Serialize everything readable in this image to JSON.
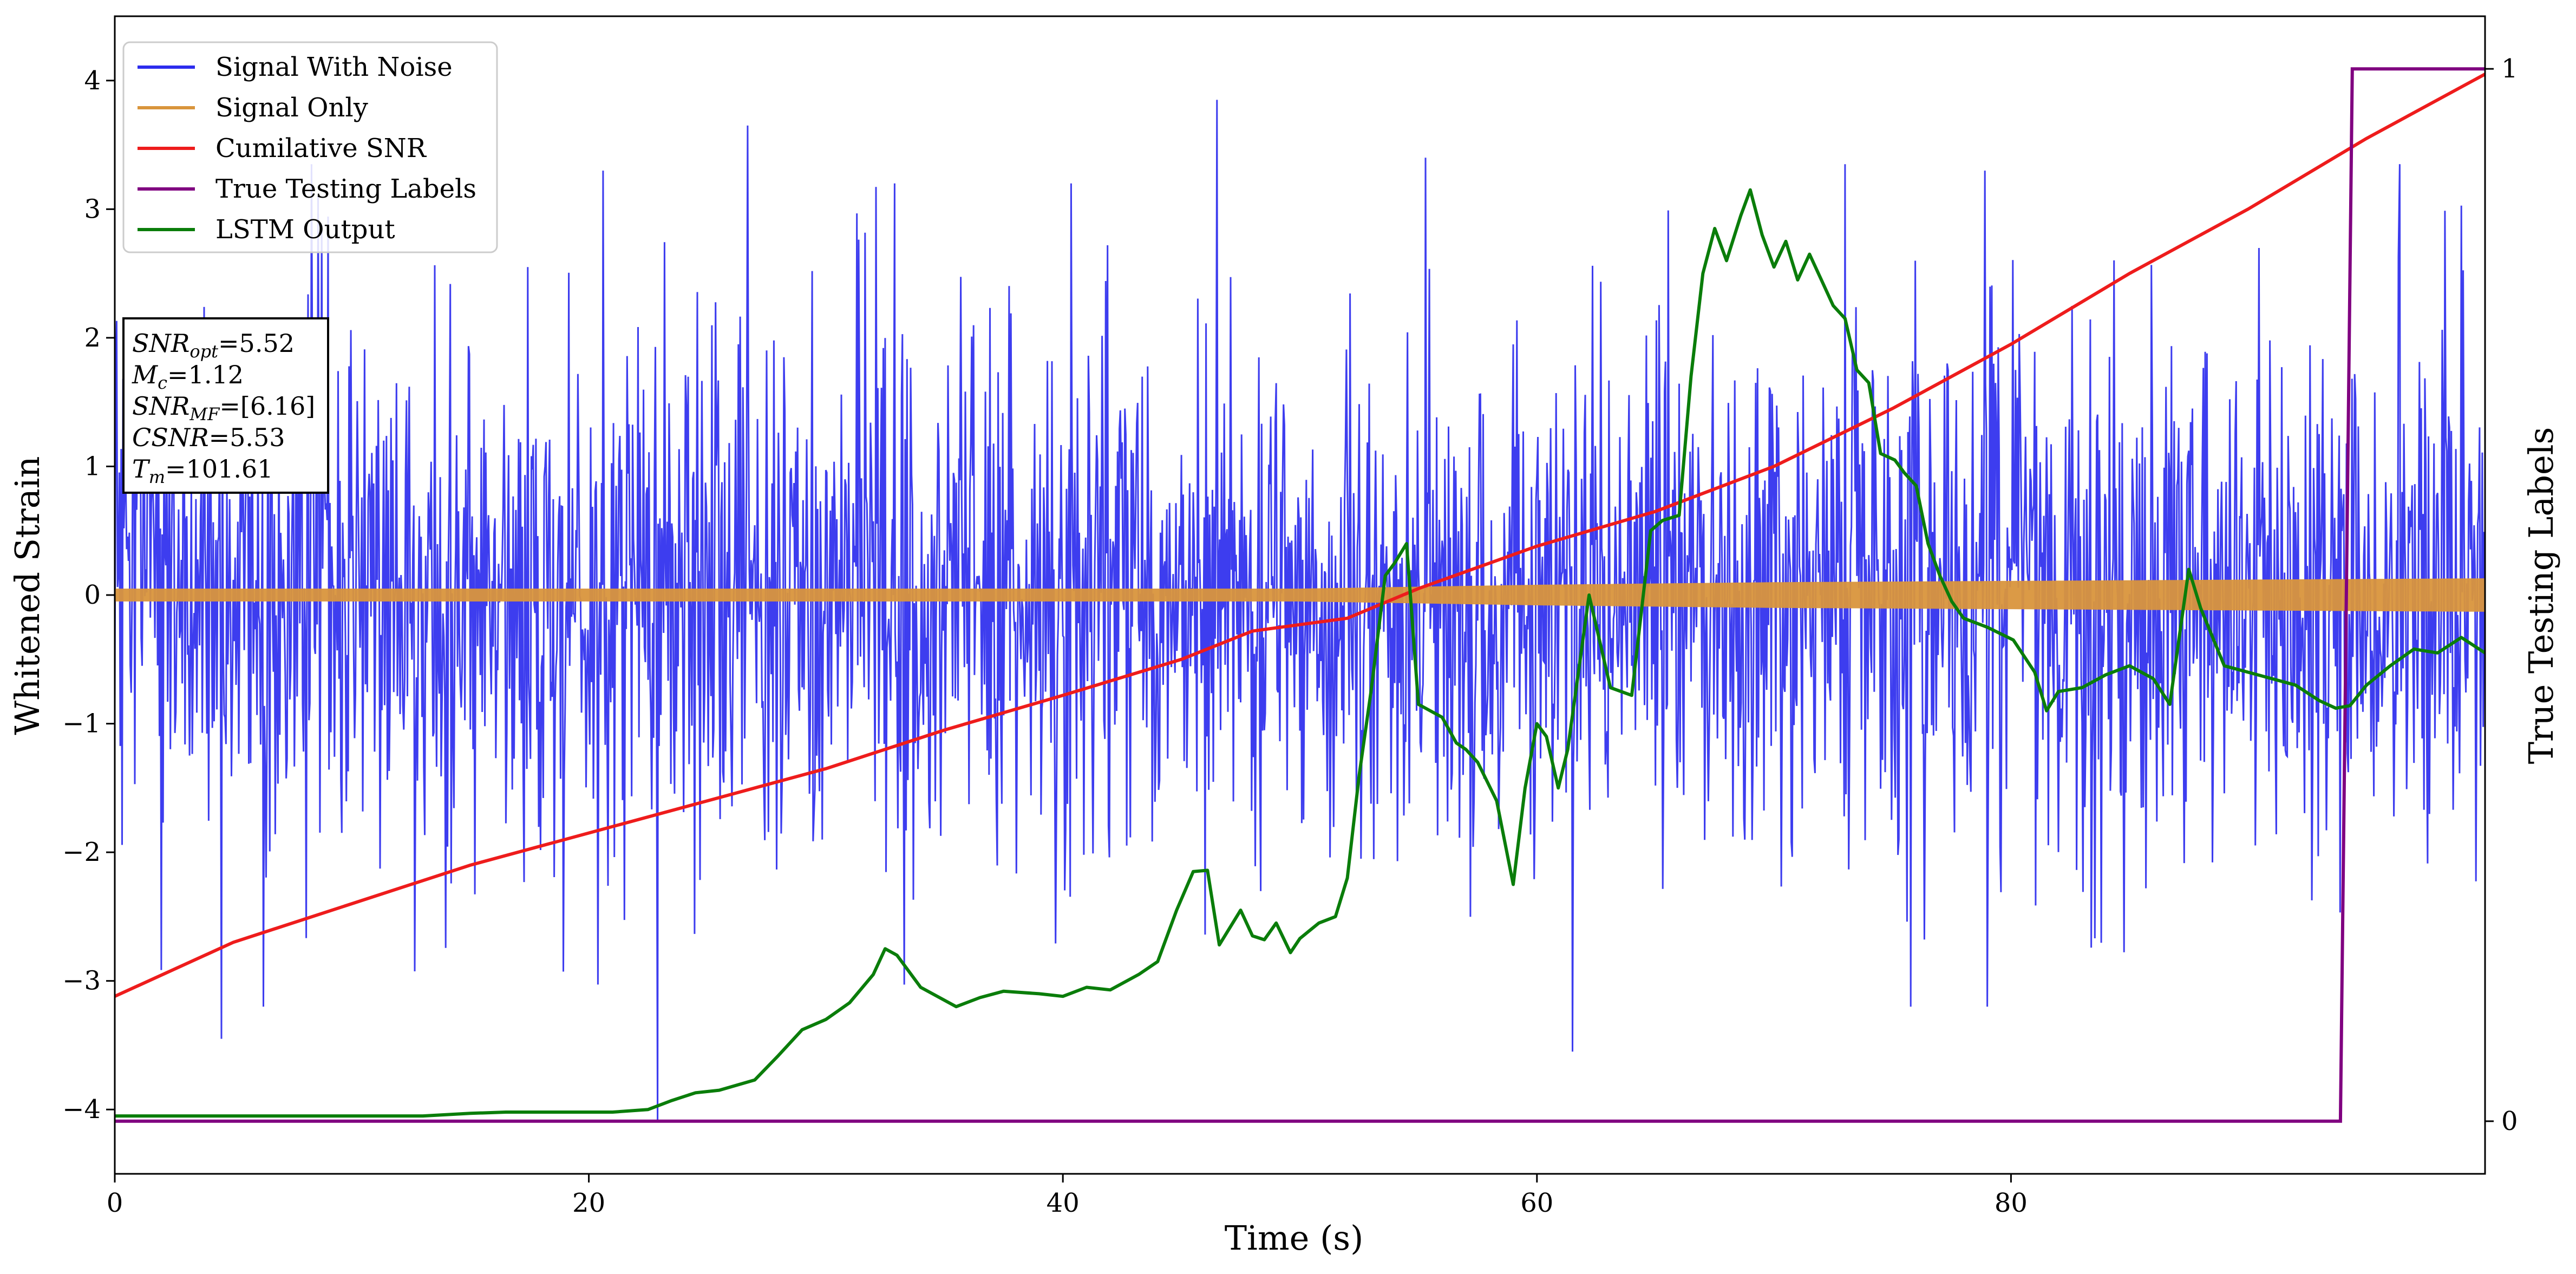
{
  "chart_data": {
    "type": "line",
    "xlabel": "Time (s)",
    "ylabel_left": "Whitened Strain",
    "ylabel_right": "True Testing Labels",
    "xlim": [
      0,
      100
    ],
    "ylim_left": [
      -4.5,
      4.5
    ],
    "ylim_right": [
      -0.05,
      1.05
    ],
    "x_ticks": [
      0,
      20,
      40,
      60,
      80
    ],
    "y_ticks_left": [
      -4,
      -3,
      -2,
      -1,
      0,
      1,
      2,
      3,
      4
    ],
    "y_ticks_right": [
      0,
      1
    ],
    "grid": false,
    "legend_position": "top-left",
    "colors": {
      "signal_with_noise": "#2d2dee",
      "signal_only": "#d9953c",
      "cumulative_snr": "#ee1c1c",
      "true_testing_labels": "#800080",
      "lstm_output": "#0a7d0a"
    },
    "legend": [
      {
        "key": "signal_with_noise",
        "label": "Signal With Noise"
      },
      {
        "key": "signal_only",
        "label": "Signal Only"
      },
      {
        "key": "cumulative_snr",
        "label": "Cumilative SNR"
      },
      {
        "key": "true_testing_labels",
        "label": "True Testing Labels"
      },
      {
        "key": "lstm_output",
        "label": "LSTM Output"
      }
    ],
    "signal_with_noise": {
      "note": "white noise, approx. std 1, range about -4.1 to 3.9",
      "notable_spikes": [
        [
          4.5,
          -3.45
        ],
        [
          8.3,
          3.35
        ],
        [
          20.6,
          3.3
        ],
        [
          22.9,
          -4.1
        ],
        [
          26.7,
          3.65
        ],
        [
          32.9,
          3.2
        ],
        [
          46.5,
          3.85
        ],
        [
          55.3,
          3.4
        ],
        [
          61.5,
          -3.55
        ],
        [
          73.0,
          3.35
        ],
        [
          78.9,
          3.3
        ],
        [
          96.4,
          3.35
        ]
      ]
    },
    "signal_only": {
      "note": "small chirp, amplitude envelope",
      "envelope": [
        [
          0,
          0.05
        ],
        [
          20,
          0.05
        ],
        [
          40,
          0.05
        ],
        [
          50,
          0.05
        ],
        [
          60,
          0.08
        ],
        [
          70,
          0.1
        ],
        [
          80,
          0.11
        ],
        [
          90,
          0.12
        ],
        [
          100,
          0.13
        ]
      ]
    },
    "cumulative_snr": {
      "x": [
        0,
        5,
        10,
        15,
        20,
        25,
        30,
        35,
        40,
        45,
        48,
        52,
        55,
        60,
        65,
        70,
        75,
        80,
        85,
        90,
        95,
        100
      ],
      "y": [
        -3.12,
        -2.7,
        -2.4,
        -2.1,
        -1.85,
        -1.6,
        -1.35,
        -1.05,
        -0.78,
        -0.5,
        -0.28,
        -0.18,
        0.05,
        0.38,
        0.65,
        1.0,
        1.45,
        1.95,
        2.5,
        3.0,
        3.55,
        4.05
      ]
    },
    "true_testing_labels": {
      "x": [
        0,
        93.9,
        94.4,
        100
      ],
      "y": [
        0,
        0,
        1,
        1
      ]
    },
    "lstm_output": {
      "x": [
        0,
        10,
        13,
        15,
        16.5,
        19,
        21,
        22.5,
        23.5,
        24.5,
        25.5,
        27,
        28,
        29,
        30,
        31,
        32,
        32.5,
        33,
        34,
        35.5,
        36.5,
        37.5,
        39,
        40,
        41,
        42,
        43.2,
        44,
        44.8,
        45.5,
        46.1,
        46.6,
        47.5,
        48,
        48.5,
        49,
        49.6,
        50,
        50.8,
        51.5,
        52,
        52.5,
        53,
        53.6,
        54,
        54.5,
        55,
        56,
        56.6,
        57,
        57.5,
        58.3,
        59,
        59.5,
        60,
        60.4,
        60.9,
        61.3,
        62.2,
        63.1,
        64,
        64.8,
        65.3,
        66,
        66.5,
        67,
        67.5,
        68,
        68.6,
        69,
        69.5,
        70,
        70.5,
        71,
        71.5,
        72,
        72.5,
        73,
        73.5,
        74,
        74.5,
        75.1,
        75.5,
        76,
        76.5,
        77,
        77.5,
        78,
        79,
        80.1,
        81,
        81.5,
        82,
        83,
        84,
        85,
        86,
        86.7,
        87.5,
        88,
        89,
        90,
        91,
        92,
        93,
        93.7,
        94.3,
        95,
        96,
        97,
        98,
        99,
        100
      ],
      "y": [
        -4.05,
        -4.05,
        -4.05,
        -4.03,
        -4.02,
        -4.02,
        -4.02,
        -4.0,
        -3.93,
        -3.87,
        -3.85,
        -3.77,
        -3.58,
        -3.38,
        -3.3,
        -3.17,
        -2.95,
        -2.75,
        -2.8,
        -3.05,
        -3.2,
        -3.13,
        -3.08,
        -3.1,
        -3.12,
        -3.05,
        -3.07,
        -2.95,
        -2.85,
        -2.45,
        -2.15,
        -2.14,
        -2.72,
        -2.45,
        -2.65,
        -2.68,
        -2.55,
        -2.78,
        -2.67,
        -2.55,
        -2.5,
        -2.2,
        -1.4,
        -0.75,
        0.15,
        0.25,
        0.4,
        -0.85,
        -0.95,
        -1.15,
        -1.2,
        -1.3,
        -1.6,
        -2.25,
        -1.5,
        -1.0,
        -1.1,
        -1.5,
        -1.2,
        0.0,
        -0.72,
        -0.78,
        0.5,
        0.58,
        0.62,
        1.7,
        2.5,
        2.85,
        2.6,
        2.95,
        3.15,
        2.8,
        2.55,
        2.75,
        2.45,
        2.65,
        2.45,
        2.25,
        2.15,
        1.75,
        1.65,
        1.1,
        1.05,
        0.95,
        0.85,
        0.4,
        0.15,
        -0.05,
        -0.18,
        -0.25,
        -0.35,
        -0.6,
        -0.9,
        -0.75,
        -0.72,
        -0.62,
        -0.55,
        -0.65,
        -0.85,
        0.2,
        -0.1,
        -0.55,
        -0.6,
        -0.65,
        -0.7,
        -0.82,
        -0.88,
        -0.86,
        -0.7,
        -0.55,
        -0.42,
        -0.45,
        -0.33,
        -0.45
      ]
    },
    "annotation_box": {
      "lines": [
        {
          "name": "SNR",
          "sub": "opt",
          "value": "=5.52"
        },
        {
          "name": "M",
          "sub": "c",
          "value": "=1.12"
        },
        {
          "name": "SNR",
          "sub": "MF",
          "value": "=[6.16]"
        },
        {
          "name": "CSNR",
          "sub": "",
          "value": "=5.53"
        },
        {
          "name": "T",
          "sub": "m",
          "value": "=101.61"
        }
      ]
    }
  }
}
